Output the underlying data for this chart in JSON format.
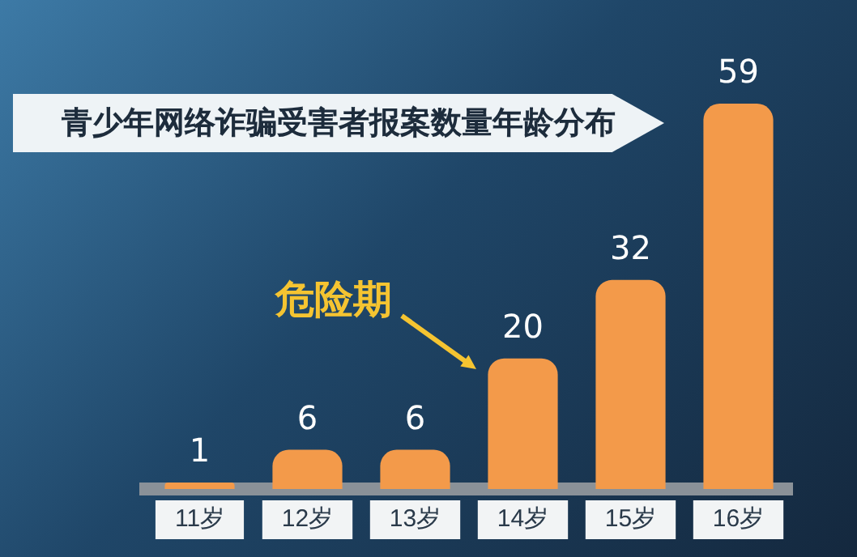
{
  "chart_data": {
    "type": "bar",
    "title": "青少年网络诈骗受害者报案数量年龄分布",
    "categories": [
      "11岁",
      "12岁",
      "13岁",
      "14岁",
      "15岁",
      "16岁"
    ],
    "values": [
      1,
      6,
      6,
      20,
      32,
      59
    ],
    "color": "#f39a4a",
    "data_labels": true,
    "annotations": [
      "危险期"
    ]
  }
}
